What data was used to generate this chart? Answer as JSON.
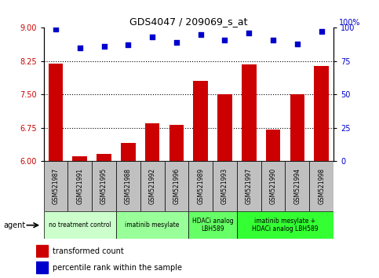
{
  "title": "GDS4047 / 209069_s_at",
  "samples": [
    "GSM521987",
    "GSM521991",
    "GSM521995",
    "GSM521988",
    "GSM521992",
    "GSM521996",
    "GSM521989",
    "GSM521993",
    "GSM521997",
    "GSM521990",
    "GSM521994",
    "GSM521998"
  ],
  "bar_values": [
    8.19,
    6.12,
    6.17,
    6.42,
    6.85,
    6.82,
    7.8,
    7.5,
    8.18,
    6.72,
    7.5,
    8.15
  ],
  "dot_values": [
    99,
    85,
    86,
    87,
    93,
    89,
    95,
    91,
    96,
    91,
    88,
    97
  ],
  "ylim_left": [
    6,
    9
  ],
  "ylim_right": [
    0,
    100
  ],
  "yticks_left": [
    6,
    6.75,
    7.5,
    8.25,
    9
  ],
  "yticks_right": [
    0,
    25,
    50,
    75,
    100
  ],
  "bar_color": "#cc0000",
  "dot_color": "#0000cc",
  "agent_groups": [
    {
      "label": "no treatment control",
      "start": 0,
      "end": 3,
      "color": "#ccffcc"
    },
    {
      "label": "imatinib mesylate",
      "start": 3,
      "end": 6,
      "color": "#99ff99"
    },
    {
      "label": "HDACi analog\nLBH589",
      "start": 6,
      "end": 8,
      "color": "#66ff66"
    },
    {
      "label": "imatinib mesylate +\nHDACi analog LBH589",
      "start": 8,
      "end": 12,
      "color": "#33ff33"
    }
  ],
  "grid_yticks": [
    6.75,
    7.5,
    8.25
  ],
  "bar_width": 0.6,
  "sample_label_color": "#c0c0c0"
}
